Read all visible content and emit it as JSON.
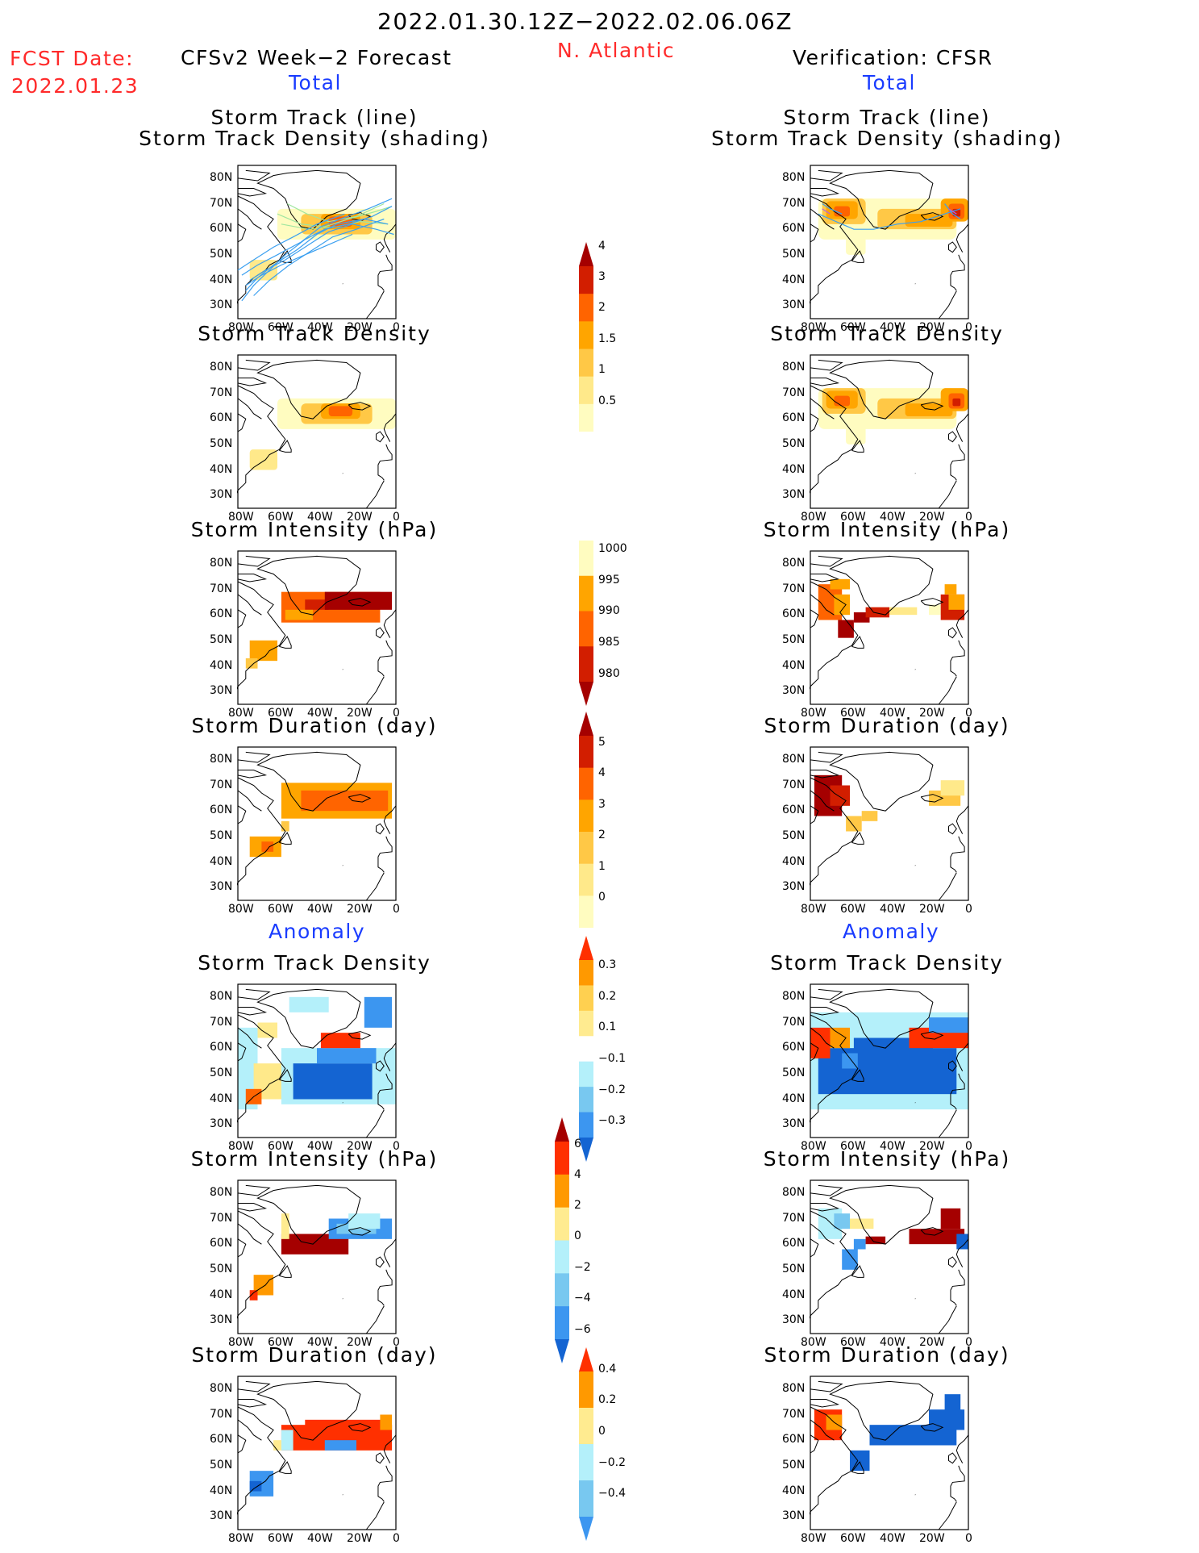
{
  "header": {
    "period": "2022.01.30.12Z−2022.02.06.06Z",
    "region": "N. Atlantic",
    "fcst_label": "FCST Date:",
    "fcst_date": "2022.01.23",
    "left_model": "CFSv2 Week−2 Forecast",
    "right_model": "Verification: CFSR",
    "total_label": "Total",
    "anomaly_label": "Anomaly"
  },
  "axes": {
    "lat_labels": [
      "80N",
      "70N",
      "60N",
      "50N",
      "40N",
      "30N"
    ],
    "lon_labels": [
      "80W",
      "60W",
      "40W",
      "20W",
      "0"
    ]
  },
  "panel_titles": {
    "track_line": "Storm Track (line)",
    "track_density_shading": "Storm Track Density (shading)",
    "track_density": "Storm Track Density",
    "intensity": "Storm Intensity (hPa)",
    "duration": "Storm Duration (day)"
  },
  "colorbars": [
    {
      "id": "density",
      "labels": [
        "4",
        "3",
        "2",
        "1.5",
        "1",
        "0.5"
      ],
      "colors": [
        "#a50000",
        "#d21e00",
        "#ff6400",
        "#ffa500",
        "#ffc846",
        "#ffe98a",
        "#fffcc0"
      ],
      "triangle_top": true,
      "triangle_bottom": false
    },
    {
      "id": "intensity",
      "labels": [
        "1000",
        "995",
        "990",
        "985",
        "980"
      ],
      "colors": [
        "#fffcc0",
        "#ffa500",
        "#ff6400",
        "#d21e00",
        "#a50000"
      ],
      "triangle_top": false,
      "triangle_bottom": true
    },
    {
      "id": "duration",
      "labels": [
        "5",
        "4",
        "3",
        "2",
        "1",
        "0"
      ],
      "colors": [
        "#a50000",
        "#d21e00",
        "#ff6400",
        "#ffa500",
        "#ffc846",
        "#ffe98a",
        "#fffcc0"
      ],
      "triangle_top": true,
      "triangle_bottom": false
    },
    {
      "id": "density_anom",
      "labels": [
        "0.3",
        "0.2",
        "0.1",
        "−0.1",
        "−0.2",
        "−0.3"
      ],
      "colors": [
        "#ff3000",
        "#ff9900",
        "#ffd050",
        "#ffeb90",
        "#ffffff",
        "#b4f0fa",
        "#78c8f0",
        "#3c96f0",
        "#1464d2"
      ],
      "triangle_top": true,
      "triangle_bottom": true
    },
    {
      "id": "intensity_anom",
      "labels": [
        "6",
        "4",
        "2",
        "0",
        "−2",
        "−4",
        "−6"
      ],
      "colors": [
        "#a50000",
        "#ff3000",
        "#ff9900",
        "#ffeb90",
        "#b4f0fa",
        "#78c8f0",
        "#3c96f0",
        "#1464d2"
      ],
      "triangle_top": true,
      "triangle_bottom": true
    },
    {
      "id": "duration_anom",
      "labels": [
        "0.4",
        "0.2",
        "0",
        "−0.2",
        "−0.4"
      ],
      "colors": [
        "#ff3000",
        "#ff9900",
        "#ffeb90",
        "#b4f0fa",
        "#78c8f0",
        "#3c96f0"
      ],
      "triangle_top": true,
      "triangle_bottom": true
    }
  ],
  "palette": {
    "track_line": "#3ca0f0",
    "track_line2": "#a0e6a0"
  }
}
